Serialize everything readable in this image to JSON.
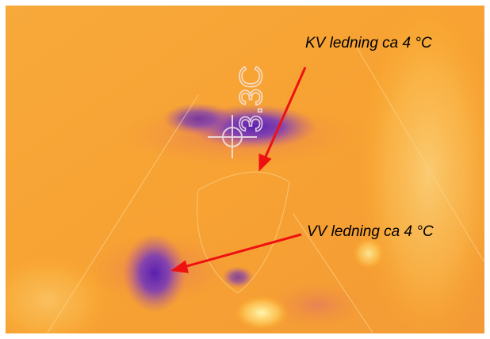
{
  "image": {
    "reading": "3.3C",
    "annotations": [
      {
        "label": "KV ledning ca 4 °C"
      },
      {
        "label": "VV ledning ca 4 °C"
      }
    ]
  }
}
